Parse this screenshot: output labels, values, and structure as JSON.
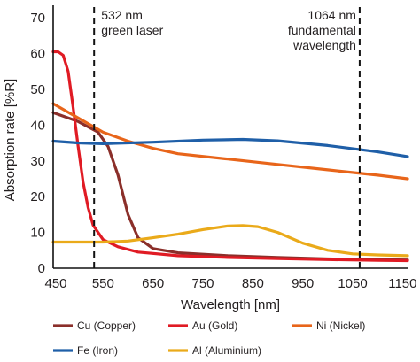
{
  "chart_data": {
    "type": "line",
    "xlabel": "Wavelength [nm]",
    "ylabel": "Absorption rate [%R]",
    "xlim": [
      450,
      1160
    ],
    "ylim": [
      0,
      72
    ],
    "x_ticks": [
      450,
      550,
      650,
      750,
      850,
      950,
      1050,
      1150
    ],
    "y_ticks": [
      0,
      10,
      20,
      30,
      40,
      50,
      60,
      70
    ],
    "grid": false,
    "legend_position": "bottom",
    "annotations": [
      {
        "x": 532,
        "lines": [
          "532 nm",
          "green laser"
        ],
        "align": "right-of-line"
      },
      {
        "x": 1064,
        "lines": [
          "1064 nm",
          "fundamental",
          "wavelength"
        ],
        "align": "left-of-line"
      }
    ],
    "series": [
      {
        "name": "Cu (Copper)",
        "color": "#8b2f2a",
        "points": [
          [
            450,
            43.5
          ],
          [
            500,
            41
          ],
          [
            540,
            38
          ],
          [
            560,
            34
          ],
          [
            580,
            26
          ],
          [
            600,
            15
          ],
          [
            620,
            8.5
          ],
          [
            650,
            5.5
          ],
          [
            700,
            4.3
          ],
          [
            800,
            3.5
          ],
          [
            900,
            3
          ],
          [
            1000,
            2.6
          ],
          [
            1100,
            2.4
          ],
          [
            1160,
            2.3
          ]
        ]
      },
      {
        "name": "Au (Gold)",
        "color": "#e01b24",
        "points": [
          [
            450,
            60.5
          ],
          [
            460,
            60.5
          ],
          [
            470,
            59.5
          ],
          [
            480,
            55
          ],
          [
            490,
            45
          ],
          [
            500,
            34
          ],
          [
            510,
            24
          ],
          [
            520,
            17
          ],
          [
            530,
            12
          ],
          [
            550,
            8
          ],
          [
            580,
            6
          ],
          [
            620,
            4.5
          ],
          [
            700,
            3.5
          ],
          [
            800,
            3
          ],
          [
            900,
            2.7
          ],
          [
            1000,
            2.4
          ],
          [
            1100,
            2.2
          ],
          [
            1160,
            2.1
          ]
        ]
      },
      {
        "name": "Ni (Nickel)",
        "color": "#e8651a",
        "points": [
          [
            450,
            46
          ],
          [
            500,
            42
          ],
          [
            550,
            38
          ],
          [
            600,
            35.5
          ],
          [
            650,
            33.5
          ],
          [
            700,
            32
          ],
          [
            800,
            30.5
          ],
          [
            900,
            29
          ],
          [
            1000,
            27.5
          ],
          [
            1100,
            26
          ],
          [
            1160,
            25
          ]
        ]
      },
      {
        "name": "Fe (Iron)",
        "color": "#1f5fa8",
        "points": [
          [
            450,
            35.5
          ],
          [
            500,
            35
          ],
          [
            550,
            34.8
          ],
          [
            650,
            35.2
          ],
          [
            750,
            35.8
          ],
          [
            830,
            36
          ],
          [
            900,
            35.6
          ],
          [
            1000,
            34.3
          ],
          [
            1100,
            32.5
          ],
          [
            1160,
            31.2
          ]
        ]
      },
      {
        "name": "Al (Aluminium)",
        "color": "#eaaa1a",
        "points": [
          [
            450,
            7.3
          ],
          [
            500,
            7.3
          ],
          [
            550,
            7.3
          ],
          [
            600,
            7.6
          ],
          [
            650,
            8.5
          ],
          [
            700,
            9.5
          ],
          [
            750,
            10.8
          ],
          [
            800,
            11.8
          ],
          [
            830,
            11.9
          ],
          [
            860,
            11.6
          ],
          [
            900,
            10
          ],
          [
            950,
            7
          ],
          [
            1000,
            5
          ],
          [
            1050,
            4
          ],
          [
            1100,
            3.7
          ],
          [
            1160,
            3.5
          ]
        ]
      }
    ]
  }
}
